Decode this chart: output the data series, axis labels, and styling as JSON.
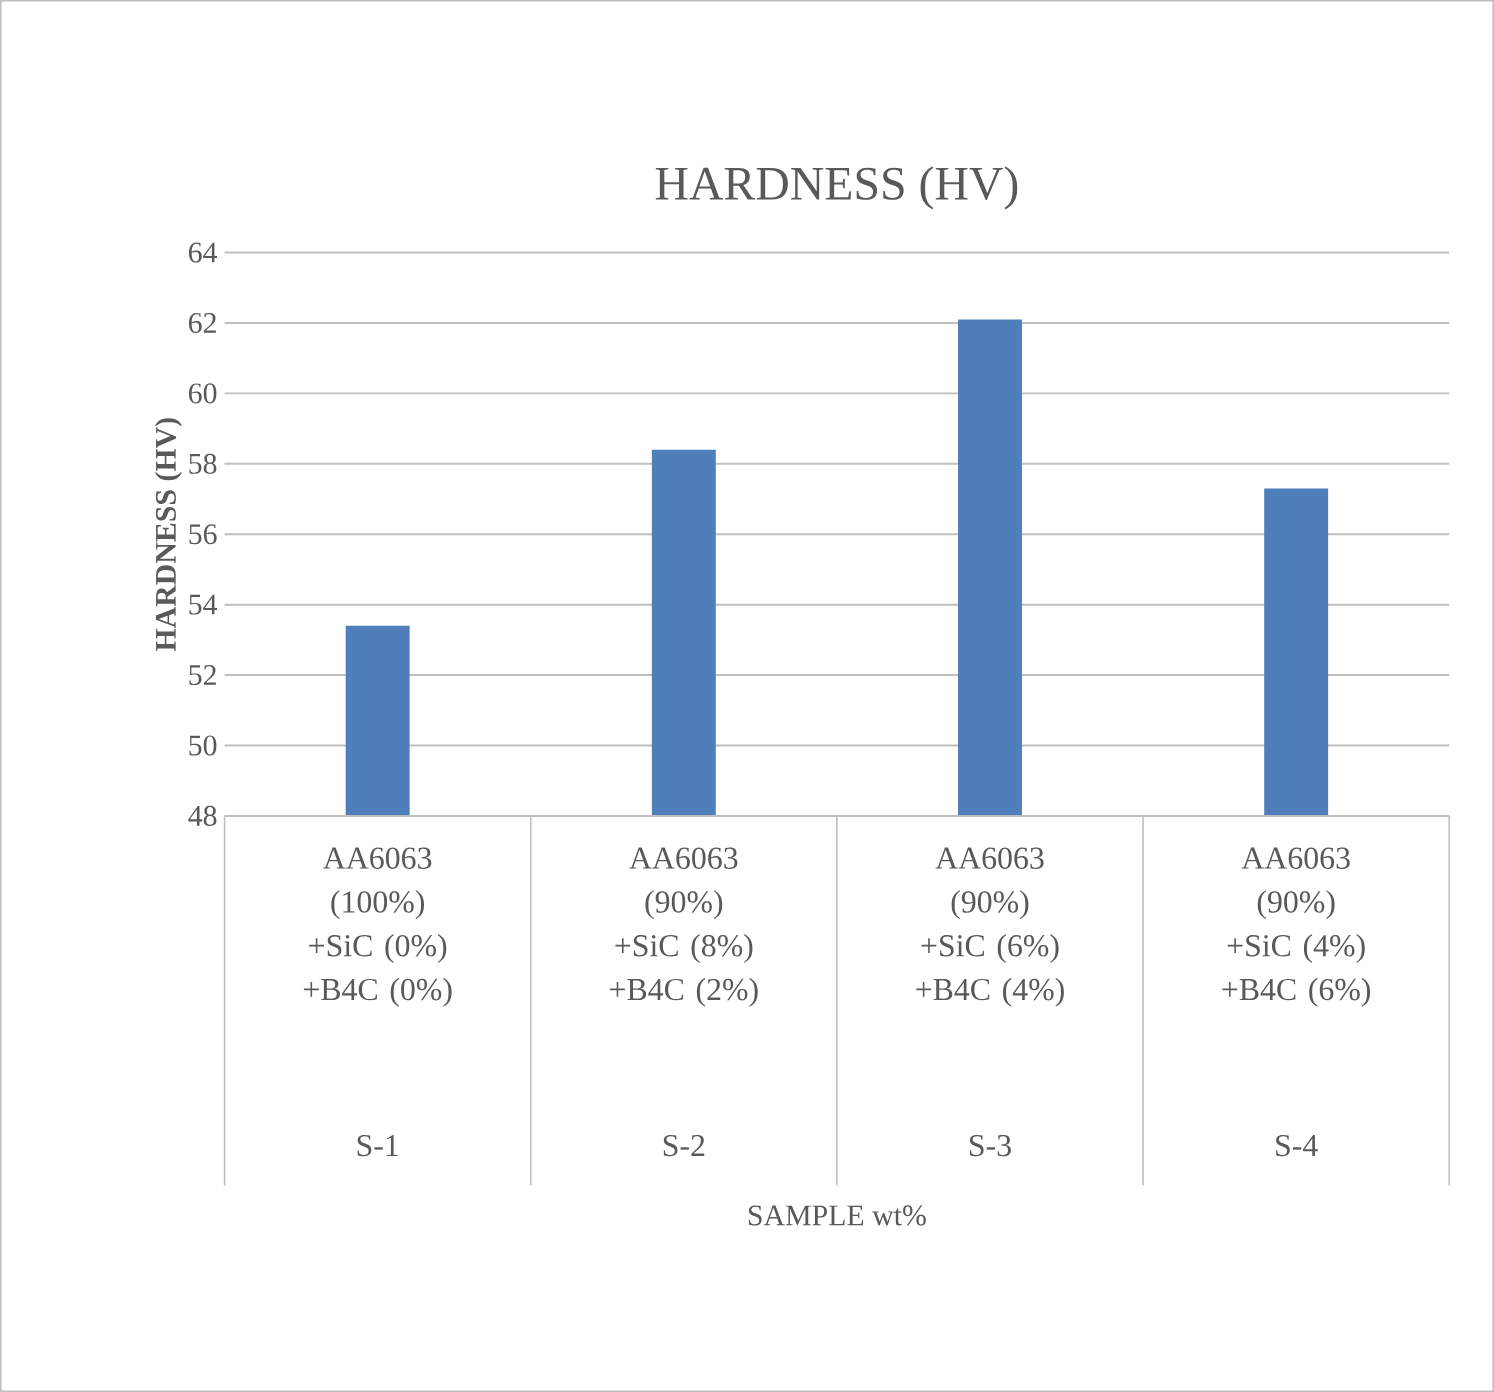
{
  "chart_data": {
    "type": "bar",
    "title": "HARDNESS (HV)",
    "ylabel": "HARDNESS (HV)",
    "categories": [
      "AA6063 (100%) +SiC (0%) +B4C (0%)",
      "AA6063 (90%) +SiC (8%) +B4C (2%)",
      "AA6063 (90%) +SiC (6%) +B4C (4%)",
      "AA6063 (90%) +SiC (4%) +B4C (6%)"
    ],
    "values": [
      53.4,
      58.4,
      62.1,
      57.3
    ],
    "color": "#4e7fbb",
    "ylim": [
      48,
      64
    ],
    "yticks": [
      48,
      50,
      52,
      54,
      56,
      58,
      60,
      62,
      64
    ],
    "grid": "y",
    "annotations": [
      "S-1",
      "S-2",
      "S-3",
      "S-4",
      "SAMPLE wt%"
    ]
  }
}
